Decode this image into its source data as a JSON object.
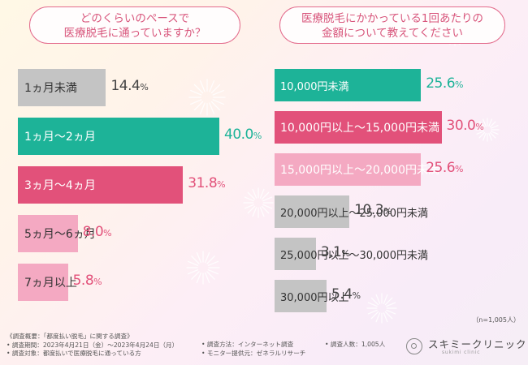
{
  "colors": {
    "teal": "#1db398",
    "pink": "#e2517a",
    "light_pink": "#f4a9c2",
    "gray": "#c4c4c4"
  },
  "left": {
    "question_line1": "どのくらいのペースで",
    "question_line2": "医療脱毛に通っていますか？"
  },
  "right": {
    "question_line1": "医療脱毛にかかっている1回あたりの",
    "question_line2": "金額について教えてください"
  },
  "chart_data": [
    {
      "type": "bar",
      "orientation": "horizontal",
      "categories": [
        "1ヵ月未満",
        "1ヵ月〜2ヵ月",
        "3ヵ月〜4ヵ月",
        "5ヵ月〜6ヵ月",
        "7ヵ月以上"
      ],
      "values": [
        14.4,
        40.0,
        31.8,
        8.0,
        5.8
      ],
      "value_labels": [
        "14.4",
        "40.0",
        "31.8",
        "8.0",
        "5.8"
      ],
      "unit": "%",
      "bar_colors": [
        "gray",
        "teal",
        "pink",
        "light_pink",
        "light_pink"
      ]
    },
    {
      "type": "bar",
      "orientation": "horizontal",
      "categories": [
        "10,000円未満",
        "10,000円以上〜15,000円未満",
        "15,000円以上〜20,000円未満",
        "20,000円以上〜25,000円未満",
        "25,000円以上〜30,000円未満",
        "30,000円以上"
      ],
      "values": [
        25.6,
        30.0,
        25.6,
        10.3,
        3.1,
        5.4
      ],
      "value_labels": [
        "25.6",
        "30.0",
        "25.6",
        "10.3",
        "3.1",
        "5.4"
      ],
      "unit": "%",
      "bar_colors": [
        "teal",
        "pink",
        "light_pink",
        "gray",
        "gray",
        "gray"
      ]
    }
  ],
  "sample_note": "（n=1,005人）",
  "footer": {
    "outline": "《調査概要：「都度払い脱毛」に関する調査》",
    "period": "• 調査期間：2023年4月21日（金）〜2023年4月24日（月）",
    "target": "• 調査対象：都度払いで医療脱毛に通っている方",
    "method": "• 調査方法：インターネット調査",
    "provider": "• モニター提供元：ゼネラルリサーチ",
    "count": "• 調査人数：1,005人"
  },
  "logo": {
    "name": "スキミークリニック",
    "sub": "sukimi clinic"
  }
}
